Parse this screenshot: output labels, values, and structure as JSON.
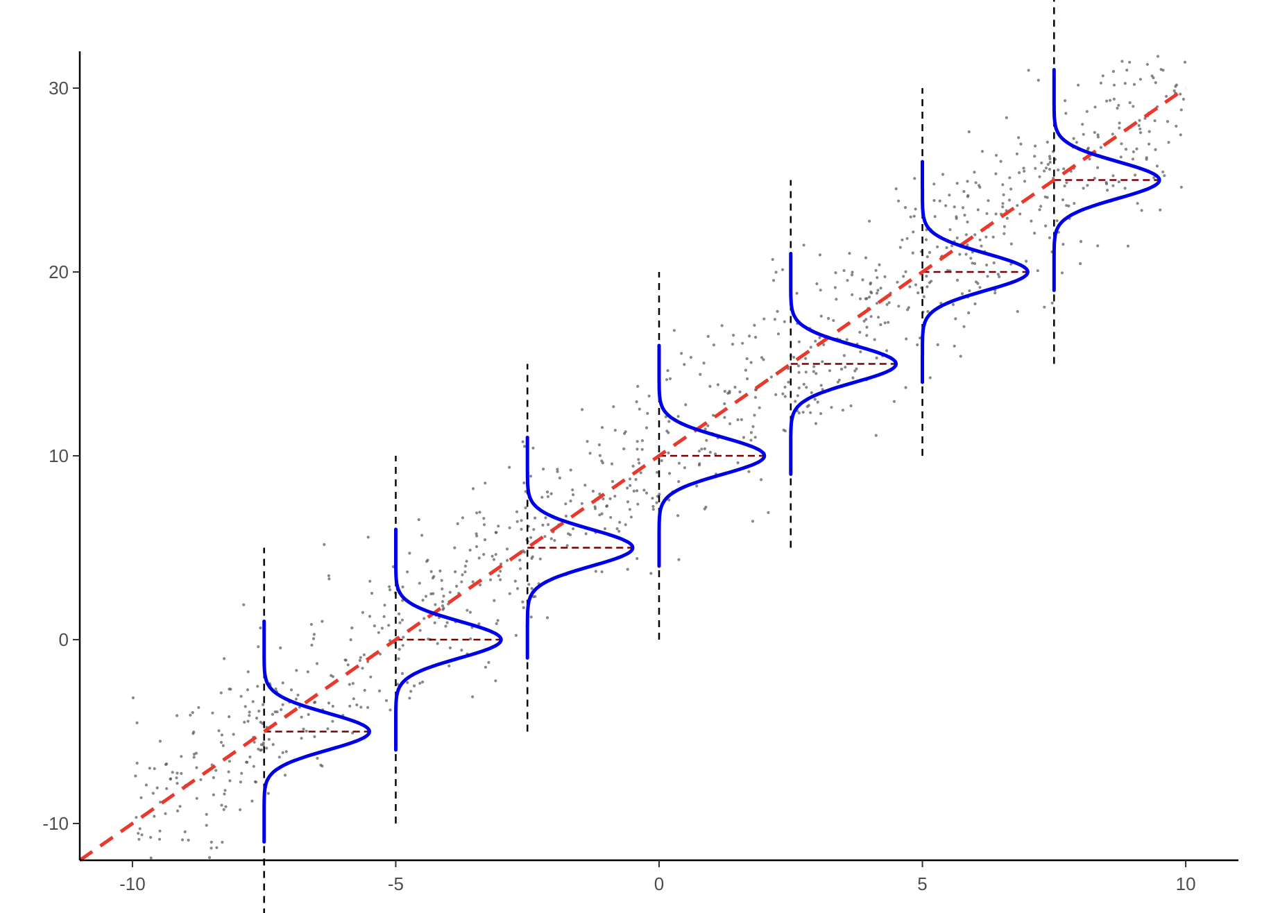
{
  "chart_data": {
    "type": "scatter",
    "title": "",
    "xlabel": "",
    "ylabel": "",
    "xlim": [
      -11,
      11
    ],
    "ylim": [
      -12,
      32
    ],
    "grid": false,
    "legend": "none",
    "x_ticks": [
      -10,
      -5,
      0,
      5,
      10
    ],
    "x_tick_labels": [
      "-10",
      "-5",
      "0",
      "5",
      "10"
    ],
    "y_ticks": [
      -10,
      0,
      10,
      20,
      30
    ],
    "y_tick_labels": [
      "-10",
      "0",
      "10",
      "20",
      "30"
    ],
    "regression_line": {
      "intercept": 10,
      "slope": 2,
      "x_range": [
        -11,
        10
      ],
      "style": "dashed",
      "color": "#e8392c"
    },
    "conditional_distributions": {
      "x_positions": [
        -7.5,
        -5,
        -2.5,
        0,
        2.5,
        5,
        7.5
      ],
      "means": [
        -5,
        0,
        5,
        10,
        15,
        20,
        25
      ],
      "sd": 2.5,
      "vertical_guide_half_length": 10,
      "curve_color": "#0000e6",
      "guide_color": "#000000",
      "mean_line_color": "#7a0000"
    },
    "points": {
      "count": 1000,
      "x_range": [
        -10,
        10
      ],
      "noise_sd": 2.5,
      "color": "#555555"
    }
  }
}
